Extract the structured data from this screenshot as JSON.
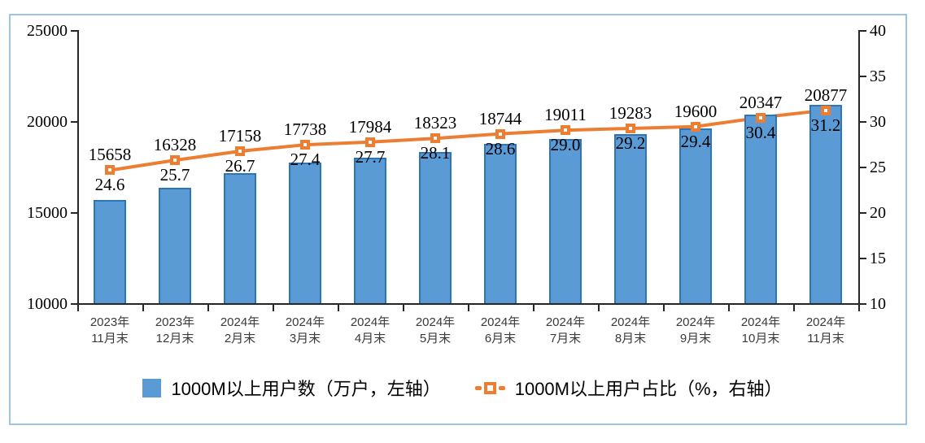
{
  "chart_data": {
    "type": "combo-bar-line",
    "categories": [
      "2023年\n11月末",
      "2023年\n12月末",
      "2024年\n2月末",
      "2024年\n3月末",
      "2024年\n4月末",
      "2024年\n5月末",
      "2024年\n6月末",
      "2024年\n7月末",
      "2024年\n8月末",
      "2024年\n9月末",
      "2024年\n10月末",
      "2024年\n11月末"
    ],
    "series": [
      {
        "name": "1000M以上用户数（万户，左轴）",
        "type": "bar",
        "axis": "left",
        "values": [
          15658,
          16328,
          17158,
          17738,
          17984,
          18323,
          18744,
          19011,
          19283,
          19600,
          20347,
          20877
        ],
        "fill_color": "#5B9BD5",
        "border_color": "#2E75B6"
      },
      {
        "name": "1000M以上用户占比（%，右轴）",
        "type": "line",
        "axis": "right",
        "values": [
          24.6,
          25.7,
          26.7,
          27.4,
          27.7,
          28.1,
          28.6,
          29.0,
          29.2,
          29.4,
          30.4,
          31.2
        ],
        "line_color": "#ED7D31",
        "marker": "square-open"
      }
    ],
    "left_axis": {
      "min": 10000,
      "max": 25000,
      "ticks": [
        25000,
        20000,
        15000,
        10000
      ]
    },
    "right_axis": {
      "min": 10,
      "max": 40,
      "ticks": [
        40,
        35,
        30,
        25,
        20,
        15,
        10
      ]
    },
    "legend": [
      {
        "label": "1000M以上用户数（万户，左轴）",
        "swatch": "bar-square"
      },
      {
        "label": "1000M以上用户占比（%，右轴）",
        "swatch": "line-marker"
      }
    ],
    "colors": {
      "bar_fill": "#5B9BD5",
      "bar_border": "#2E75B6",
      "line": "#ED7D31",
      "axis": "#262626",
      "frame_border": "#9DC3E6",
      "label_text": "#000000"
    },
    "grid": "off",
    "legend_position": "bottom-center",
    "title": ""
  }
}
